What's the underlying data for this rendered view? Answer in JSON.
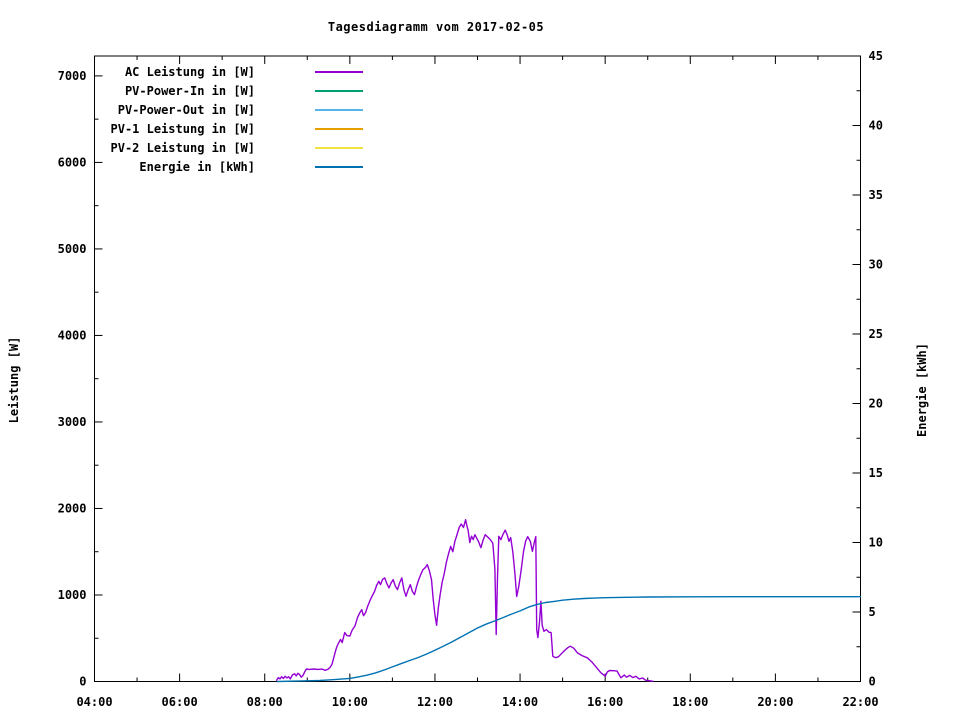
{
  "page": {
    "title": "Tagesdiagramm vom 2017-02-05"
  },
  "chart_data": {
    "type": "line",
    "title": "Tagesdiagramm vom 2017-02-05",
    "x_axis": {
      "unit": "time",
      "range_hours": [
        4,
        22
      ],
      "major_step_hours": 2,
      "minor_step_hours": 1,
      "tick_labels": [
        "04:00",
        "06:00",
        "08:00",
        "10:00",
        "12:00",
        "14:00",
        "16:00",
        "18:00",
        "20:00",
        "22:00"
      ]
    },
    "y_left_axis": {
      "label": "Leistung [W]",
      "range": [
        0,
        7230
      ],
      "major_ticks": [
        0,
        1000,
        2000,
        3000,
        4000,
        5000,
        6000,
        7000
      ],
      "minor_step": 500
    },
    "y_right_axis": {
      "label": "Energie [kWh]",
      "range": [
        0,
        45
      ],
      "major_ticks": [
        0,
        5,
        10,
        15,
        20,
        25,
        30,
        35,
        40,
        45
      ],
      "minor_step": 2.5
    },
    "grid": "off",
    "legend_position": "top-left-inside",
    "series": [
      {
        "name": "AC Leistung in [W]",
        "color": "#9400d3",
        "axis": "left",
        "points": [
          [
            8.28,
            15
          ],
          [
            8.32,
            45
          ],
          [
            8.36,
            30
          ],
          [
            8.4,
            55
          ],
          [
            8.44,
            35
          ],
          [
            8.48,
            60
          ],
          [
            8.52,
            40
          ],
          [
            8.56,
            55
          ],
          [
            8.6,
            30
          ],
          [
            8.65,
            75
          ],
          [
            8.7,
            90
          ],
          [
            8.74,
            65
          ],
          [
            8.78,
            95
          ],
          [
            8.82,
            80
          ],
          [
            8.86,
            50
          ],
          [
            8.9,
            70
          ],
          [
            8.95,
            120
          ],
          [
            8.98,
            145
          ],
          [
            9.05,
            140
          ],
          [
            9.15,
            145
          ],
          [
            9.25,
            140
          ],
          [
            9.35,
            143
          ],
          [
            9.42,
            130
          ],
          [
            9.48,
            140
          ],
          [
            9.53,
            160
          ],
          [
            9.58,
            200
          ],
          [
            9.63,
            290
          ],
          [
            9.68,
            380
          ],
          [
            9.72,
            430
          ],
          [
            9.78,
            485
          ],
          [
            9.82,
            450
          ],
          [
            9.88,
            565
          ],
          [
            9.93,
            530
          ],
          [
            10.0,
            525
          ],
          [
            10.06,
            600
          ],
          [
            10.12,
            640
          ],
          [
            10.18,
            739
          ],
          [
            10.23,
            790
          ],
          [
            10.28,
            831
          ],
          [
            10.32,
            760
          ],
          [
            10.37,
            797
          ],
          [
            10.42,
            870
          ],
          [
            10.47,
            930
          ],
          [
            10.52,
            985
          ],
          [
            10.58,
            1040
          ],
          [
            10.63,
            1110
          ],
          [
            10.68,
            1158
          ],
          [
            10.72,
            1120
          ],
          [
            10.77,
            1180
          ],
          [
            10.82,
            1197
          ],
          [
            10.87,
            1130
          ],
          [
            10.92,
            1082
          ],
          [
            10.97,
            1140
          ],
          [
            11.02,
            1178
          ],
          [
            11.07,
            1100
          ],
          [
            11.12,
            1062
          ],
          [
            11.17,
            1140
          ],
          [
            11.22,
            1197
          ],
          [
            11.27,
            1060
          ],
          [
            11.32,
            985
          ],
          [
            11.37,
            1060
          ],
          [
            11.42,
            1120
          ],
          [
            11.47,
            1040
          ],
          [
            11.52,
            1005
          ],
          [
            11.57,
            1100
          ],
          [
            11.62,
            1180
          ],
          [
            11.67,
            1240
          ],
          [
            11.72,
            1293
          ],
          [
            11.78,
            1320
          ],
          [
            11.82,
            1351
          ],
          [
            11.87,
            1280
          ],
          [
            11.92,
            1178
          ],
          [
            11.96,
            950
          ],
          [
            12.0,
            774
          ],
          [
            12.04,
            650
          ],
          [
            12.08,
            850
          ],
          [
            12.12,
            1000
          ],
          [
            12.17,
            1150
          ],
          [
            12.22,
            1250
          ],
          [
            12.27,
            1380
          ],
          [
            12.32,
            1480
          ],
          [
            12.37,
            1562
          ],
          [
            12.42,
            1500
          ],
          [
            12.47,
            1620
          ],
          [
            12.52,
            1700
          ],
          [
            12.57,
            1780
          ],
          [
            12.62,
            1820
          ],
          [
            12.67,
            1780
          ],
          [
            12.72,
            1870
          ],
          [
            12.75,
            1800
          ],
          [
            12.78,
            1750
          ],
          [
            12.82,
            1605
          ],
          [
            12.86,
            1680
          ],
          [
            12.9,
            1640
          ],
          [
            12.94,
            1697
          ],
          [
            12.98,
            1660
          ],
          [
            13.03,
            1610
          ],
          [
            13.08,
            1547
          ],
          [
            13.13,
            1630
          ],
          [
            13.18,
            1697
          ],
          [
            13.24,
            1670
          ],
          [
            13.3,
            1640
          ],
          [
            13.36,
            1600
          ],
          [
            13.41,
            1300
          ],
          [
            13.44,
            543
          ],
          [
            13.47,
            1200
          ],
          [
            13.5,
            1678
          ],
          [
            13.55,
            1640
          ],
          [
            13.6,
            1700
          ],
          [
            13.65,
            1750
          ],
          [
            13.7,
            1690
          ],
          [
            13.74,
            1620
          ],
          [
            13.78,
            1663
          ],
          [
            13.83,
            1500
          ],
          [
            13.88,
            1250
          ],
          [
            13.92,
            983
          ],
          [
            13.97,
            1100
          ],
          [
            14.03,
            1300
          ],
          [
            14.08,
            1500
          ],
          [
            14.13,
            1620
          ],
          [
            14.18,
            1675
          ],
          [
            14.24,
            1620
          ],
          [
            14.29,
            1504
          ],
          [
            14.33,
            1600
          ],
          [
            14.37,
            1675
          ],
          [
            14.39,
            600
          ],
          [
            14.42,
            508
          ],
          [
            14.46,
            700
          ],
          [
            14.49,
            927
          ],
          [
            14.52,
            650
          ],
          [
            14.56,
            580
          ],
          [
            14.62,
            600
          ],
          [
            14.68,
            570
          ],
          [
            14.73,
            565
          ],
          [
            14.77,
            292
          ],
          [
            14.83,
            275
          ],
          [
            14.9,
            285
          ],
          [
            14.97,
            320
          ],
          [
            15.05,
            360
          ],
          [
            15.12,
            390
          ],
          [
            15.18,
            408
          ],
          [
            15.26,
            385
          ],
          [
            15.35,
            331
          ],
          [
            15.45,
            300
          ],
          [
            15.58,
            274
          ],
          [
            15.68,
            230
          ],
          [
            15.77,
            177
          ],
          [
            15.9,
            100
          ],
          [
            16.0,
            61
          ],
          [
            16.05,
            110
          ],
          [
            16.1,
            127
          ],
          [
            16.2,
            125
          ],
          [
            16.28,
            120
          ],
          [
            16.37,
            43
          ],
          [
            16.45,
            75
          ],
          [
            16.5,
            50
          ],
          [
            16.58,
            70
          ],
          [
            16.65,
            45
          ],
          [
            16.72,
            60
          ],
          [
            16.8,
            30
          ],
          [
            16.88,
            40
          ],
          [
            16.95,
            15
          ],
          [
            17.05,
            8
          ],
          [
            17.12,
            3
          ]
        ]
      },
      {
        "name": "PV-Power-In in [W]",
        "color": "#009e73",
        "axis": "left",
        "points": []
      },
      {
        "name": "PV-Power-Out in [W]",
        "color": "#56b4e9",
        "axis": "left",
        "points": []
      },
      {
        "name": "PV-1 Leistung in [W]",
        "color": "#e69f00",
        "axis": "left",
        "points": []
      },
      {
        "name": "PV-2 Leistung in [W]",
        "color": "#f0e442",
        "axis": "left",
        "points": []
      },
      {
        "name": "Energie in [kWh]",
        "color": "#0072b2",
        "axis": "right",
        "points": [
          [
            8.3,
            0
          ],
          [
            8.6,
            0.02
          ],
          [
            9.0,
            0.05
          ],
          [
            9.3,
            0.08
          ],
          [
            9.6,
            0.13
          ],
          [
            9.8,
            0.17
          ],
          [
            10.0,
            0.22
          ],
          [
            10.2,
            0.33
          ],
          [
            10.4,
            0.45
          ],
          [
            10.6,
            0.62
          ],
          [
            10.8,
            0.82
          ],
          [
            11.0,
            1.05
          ],
          [
            11.2,
            1.28
          ],
          [
            11.4,
            1.5
          ],
          [
            11.6,
            1.72
          ],
          [
            11.8,
            1.97
          ],
          [
            12.0,
            2.25
          ],
          [
            12.2,
            2.55
          ],
          [
            12.4,
            2.85
          ],
          [
            12.6,
            3.18
          ],
          [
            12.8,
            3.52
          ],
          [
            13.0,
            3.85
          ],
          [
            13.2,
            4.12
          ],
          [
            13.4,
            4.35
          ],
          [
            13.6,
            4.6
          ],
          [
            13.8,
            4.85
          ],
          [
            14.0,
            5.08
          ],
          [
            14.2,
            5.35
          ],
          [
            14.4,
            5.55
          ],
          [
            14.6,
            5.68
          ],
          [
            14.8,
            5.76
          ],
          [
            15.0,
            5.85
          ],
          [
            15.25,
            5.92
          ],
          [
            15.5,
            5.97
          ],
          [
            15.75,
            6.0
          ],
          [
            16.0,
            6.03
          ],
          [
            16.5,
            6.06
          ],
          [
            17.0,
            6.08
          ],
          [
            18.0,
            6.09
          ],
          [
            19.0,
            6.1
          ],
          [
            20.0,
            6.1
          ],
          [
            21.0,
            6.1
          ],
          [
            22.0,
            6.1
          ]
        ]
      }
    ]
  }
}
